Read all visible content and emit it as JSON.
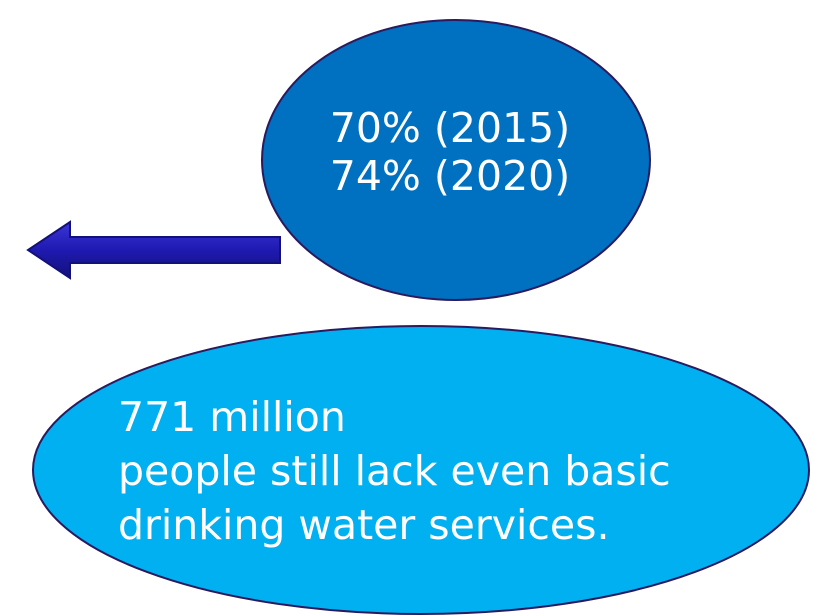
{
  "top_bubble": {
    "lines": [
      "70% (2015)",
      "74% (2020)"
    ],
    "color": "#0070c0"
  },
  "bottom_bubble": {
    "lines": [
      "771 million",
      "people still lack even basic",
      "drinking water services."
    ],
    "color": "#00b0f0"
  },
  "arrow": {
    "direction": "left",
    "color": "#1f1ab0"
  },
  "outline_color": "#2a1a5e"
}
